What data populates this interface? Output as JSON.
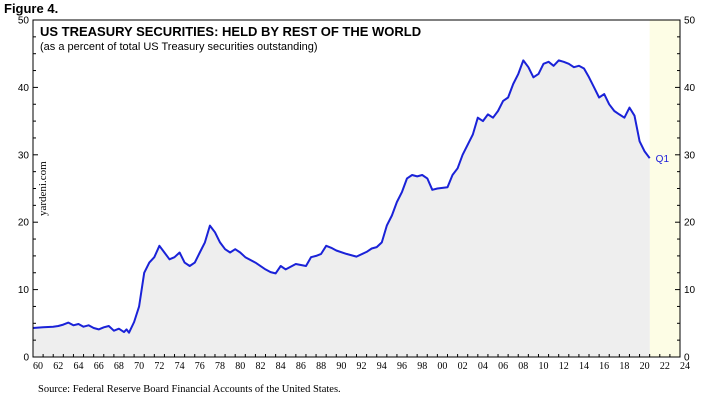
{
  "figure_label": "Figure 4.",
  "source": "Source: Federal Reserve Board Financial Accounts of the United States.",
  "colors": {
    "line": "#1a22d8",
    "area_fill": "#eeeeee",
    "background": "#fdfde5"
  },
  "chart_data": {
    "type": "area",
    "title": "US TREASURY SECURITIES: HELD BY REST OF THE WORLD",
    "subtitle": "(as a percent of total US Treasury securities outstanding)",
    "watermark": "yardeni.com",
    "annotation": "Q1",
    "xlim": [
      1960,
      2024
    ],
    "ylim": [
      0,
      50
    ],
    "y_ticks": [
      0,
      10,
      20,
      30,
      40,
      50
    ],
    "x_tick_labels": [
      "60",
      "62",
      "64",
      "66",
      "68",
      "70",
      "72",
      "74",
      "76",
      "78",
      "80",
      "82",
      "84",
      "86",
      "88",
      "90",
      "92",
      "94",
      "96",
      "98",
      "00",
      "02",
      "04",
      "06",
      "08",
      "10",
      "12",
      "14",
      "16",
      "18",
      "20",
      "22",
      "24"
    ],
    "grid": false,
    "series": [
      {
        "x": [
          1960,
          1961,
          1962,
          1962.5,
          1963,
          1963.5,
          1964,
          1964.5,
          1965,
          1965.5,
          1966,
          1966.5,
          1967,
          1967.5,
          1968,
          1968.5,
          1969,
          1969.25,
          1969.5,
          1970,
          1970.5,
          1971,
          1971.5,
          1972,
          1972.5,
          1973,
          1973.5,
          1974,
          1974.5,
          1975,
          1975.5,
          1976,
          1976.5,
          1977,
          1977.5,
          1978,
          1978.5,
          1979,
          1979.5,
          1980,
          1980.5,
          1981,
          1982,
          1983,
          1983.5,
          1984,
          1984.5,
          1985,
          1986,
          1987,
          1987.5,
          1988,
          1988.5,
          1989,
          1989.5,
          1990,
          1991,
          1992,
          1993,
          1993.5,
          1994,
          1994.5,
          1995,
          1995.5,
          1996,
          1996.5,
          1997,
          1997.5,
          1998,
          1998.5,
          1999,
          1999.5,
          2000,
          2001,
          2001.5,
          2002,
          2002.5,
          2003,
          2003.5,
          2004,
          2004.5,
          2005,
          2005.5,
          2006,
          2006.5,
          2007,
          2007.5,
          2008,
          2008.5,
          2009,
          2009.5,
          2010,
          2010.5,
          2011,
          2011.5,
          2012,
          2012.5,
          2013,
          2013.5,
          2014,
          2014.5,
          2015,
          2015.5,
          2016,
          2016.5,
          2017,
          2017.5,
          2018,
          2018.5,
          2019,
          2019.5,
          2020,
          2020.5,
          2021
        ],
        "values": [
          4.3,
          4.4,
          4.5,
          4.6,
          4.8,
          5.1,
          4.7,
          4.9,
          4.5,
          4.7,
          4.3,
          4.1,
          4.4,
          4.6,
          3.9,
          4.2,
          3.7,
          4.1,
          3.6,
          5.2,
          7.5,
          12.5,
          14.0,
          14.8,
          16.5,
          15.5,
          14.5,
          14.8,
          15.5,
          14.0,
          13.5,
          14.0,
          15.5,
          17.0,
          19.5,
          18.5,
          17.0,
          16.0,
          15.5,
          16.0,
          15.5,
          14.8,
          14.0,
          13.0,
          12.6,
          12.4,
          13.5,
          13.0,
          13.8,
          13.5,
          14.8,
          15.0,
          15.3,
          16.5,
          16.2,
          15.8,
          15.3,
          14.9,
          15.6,
          16.1,
          16.3,
          17.0,
          19.5,
          21.0,
          23.0,
          24.5,
          26.5,
          27.0,
          26.8,
          27.0,
          26.5,
          24.8,
          25.0,
          25.2,
          27.0,
          28.0,
          30.0,
          31.5,
          33.0,
          35.5,
          35.0,
          36.0,
          35.5,
          36.5,
          38.0,
          38.5,
          40.5,
          42.0,
          44.0,
          43.0,
          41.5,
          42.0,
          43.5,
          43.8,
          43.2,
          44.0,
          43.8,
          43.5,
          43.0,
          43.2,
          42.8,
          41.5,
          40.0,
          38.5,
          39.0,
          37.5,
          36.5,
          36.0,
          35.5,
          37.0,
          35.8,
          32.0,
          30.5,
          29.5
        ]
      }
    ]
  }
}
